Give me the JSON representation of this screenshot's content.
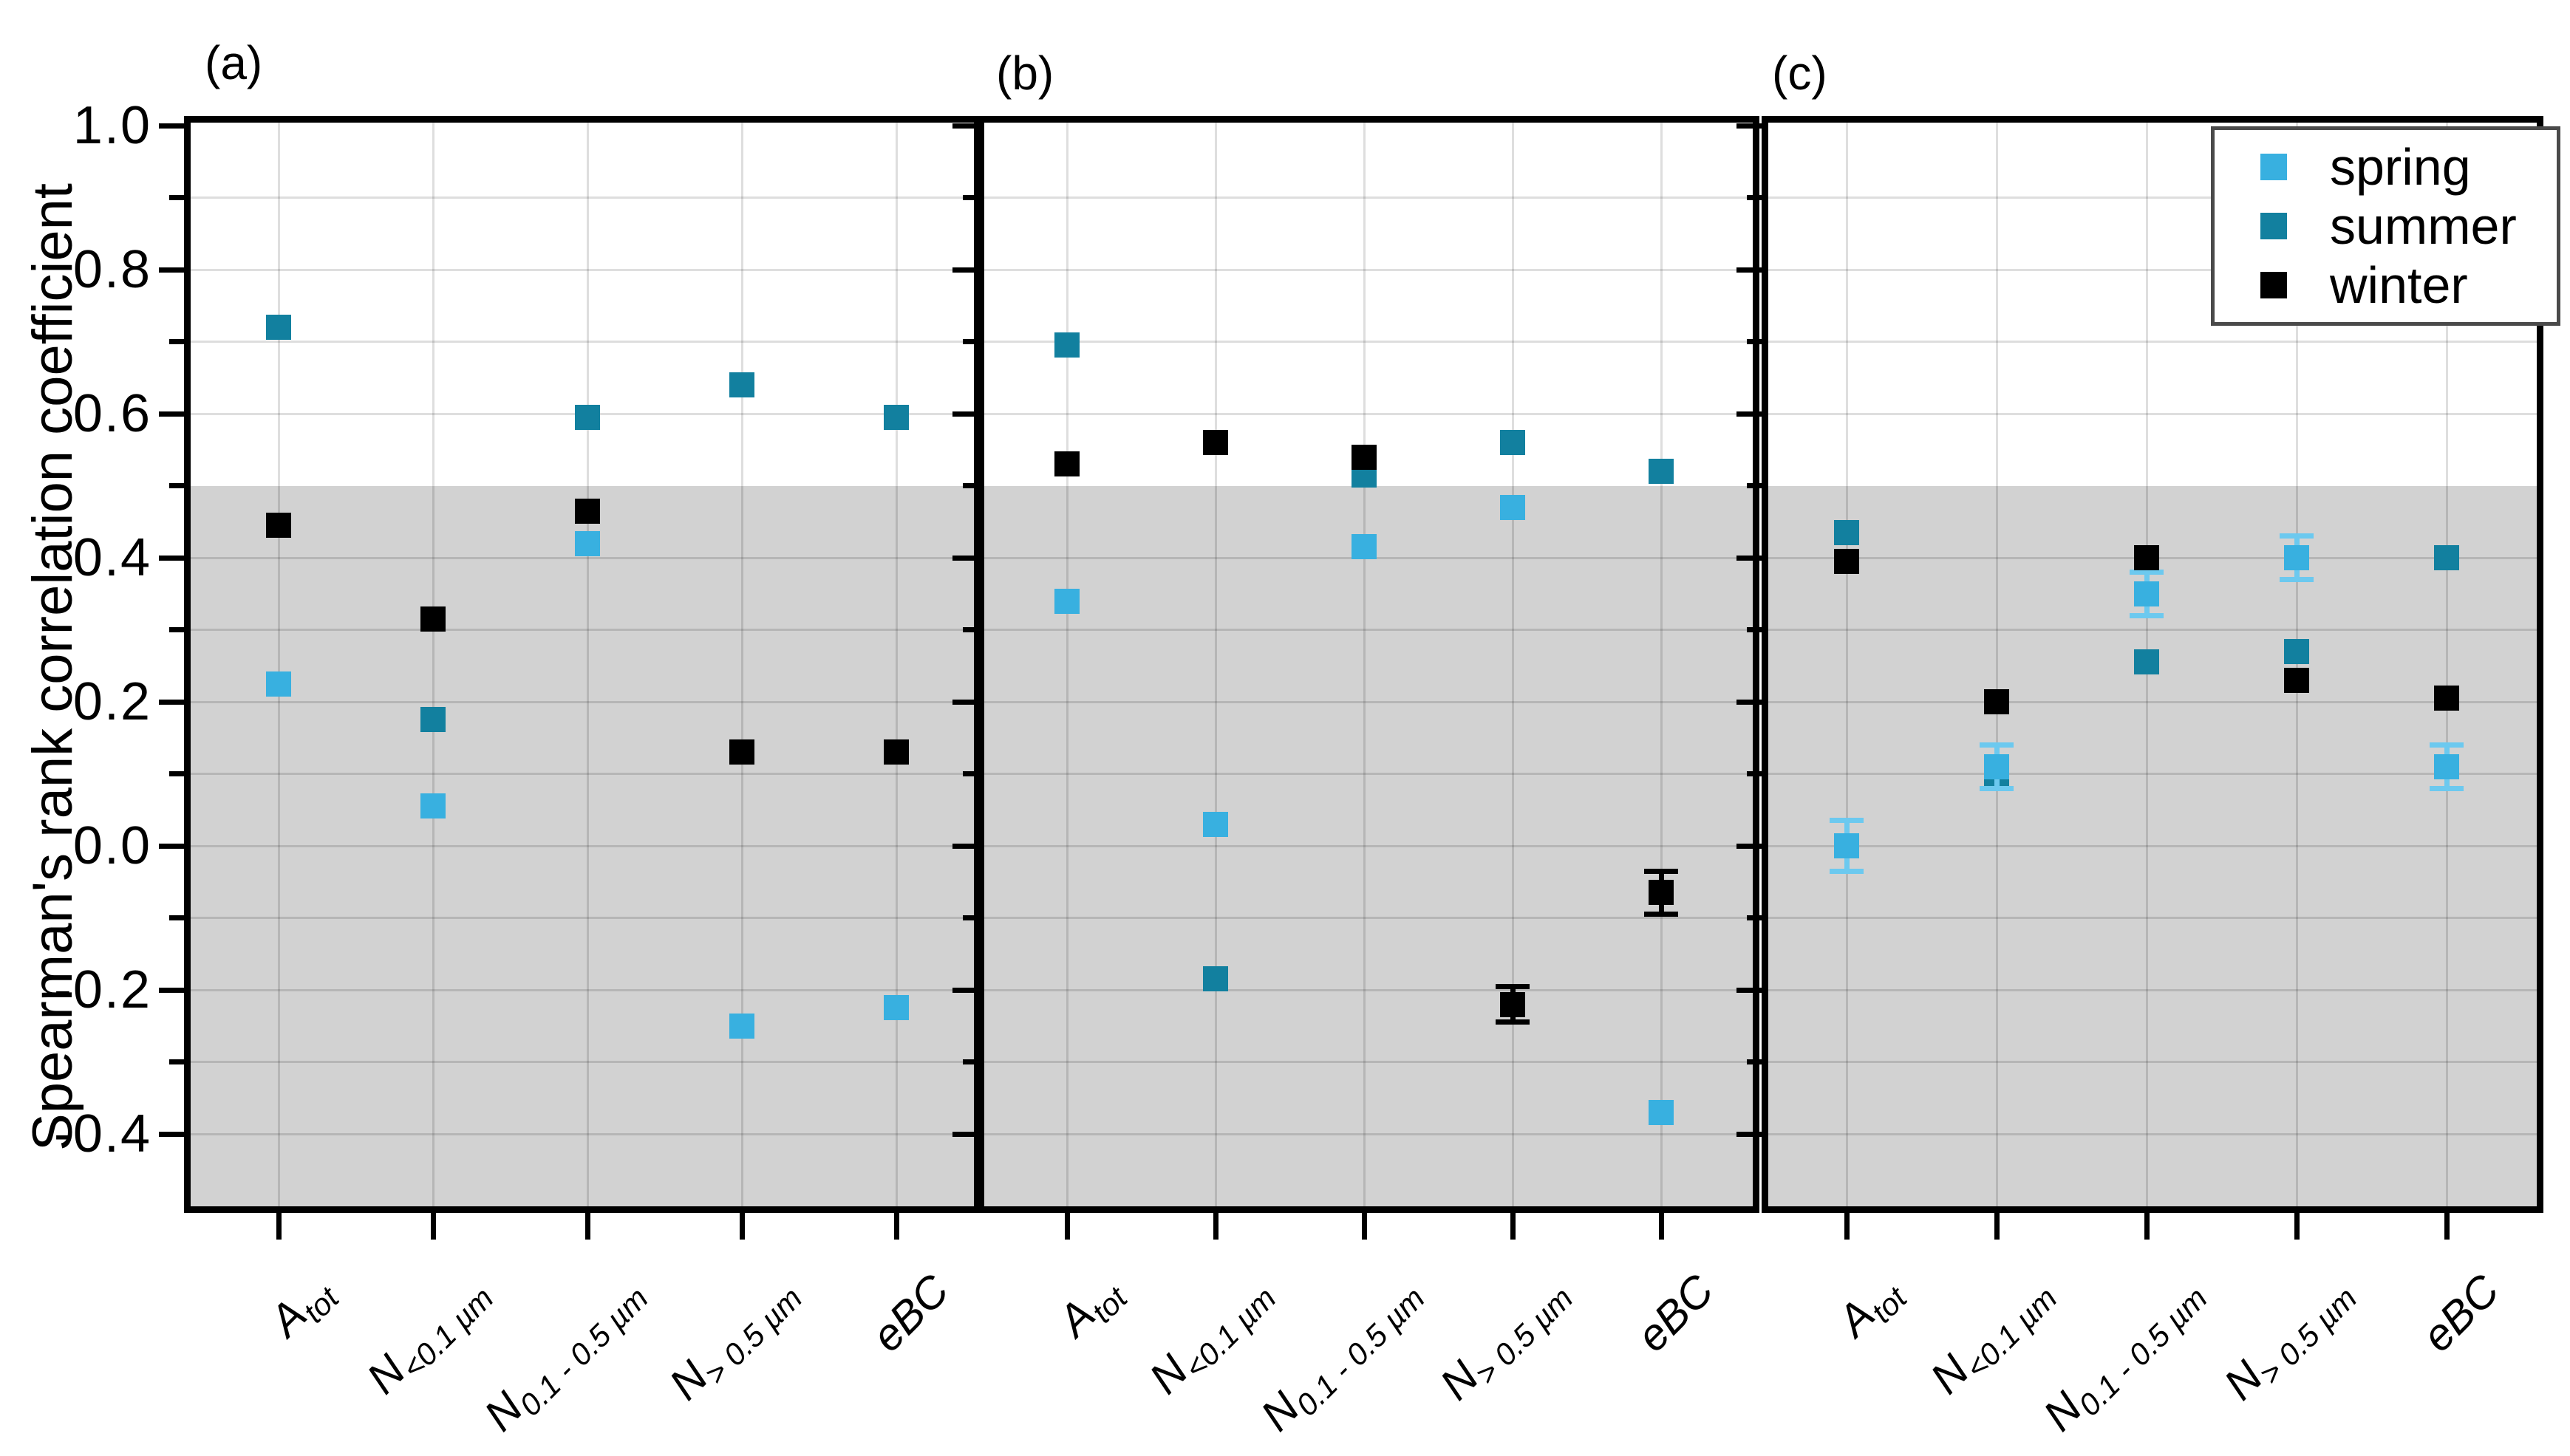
{
  "figure": {
    "background": "#ffffff"
  },
  "y_axis": {
    "title": "Spearman's rank correlation coefficient",
    "tick_labels": [
      "1.0",
      "0.8",
      "0.6",
      "0.4",
      "0.2",
      "0.0",
      "-0.2",
      "-0.4"
    ]
  },
  "legend": {
    "position": "top-right",
    "items": [
      {
        "label": "spring",
        "color": "#38b0e0",
        "error_color": "#6cc9ef"
      },
      {
        "label": "summer",
        "color": "#12809f",
        "error_color": "#12809f"
      },
      {
        "label": "winter",
        "color": "#000000",
        "error_color": "#000000"
      }
    ]
  },
  "chart_data": {
    "type": "scatter",
    "title": "",
    "xlabel": "",
    "ylabel": "Spearman's rank correlation coefficient",
    "ylim": [
      -0.5,
      1.0
    ],
    "yticks_major": [
      1.0,
      0.8,
      0.6,
      0.4,
      0.2,
      0.0,
      -0.2,
      -0.4
    ],
    "yticks_minor": [
      0.9,
      0.7,
      0.5,
      0.3,
      0.1,
      -0.1,
      -0.3
    ],
    "gridline_values": [
      0.9,
      0.8,
      0.7,
      0.6,
      0.4,
      0.3,
      0.2,
      0.1,
      0.0,
      -0.1,
      -0.2,
      -0.3,
      -0.4
    ],
    "grid": true,
    "shaded_band": {
      "from": -0.5,
      "to": 0.5,
      "color": "#d2d2d2"
    },
    "categories": [
      {
        "label": "A_tot",
        "main": "A",
        "sub": "tot"
      },
      {
        "label": "N_<0.1 um",
        "main": "N",
        "sub": "<0.1 µm"
      },
      {
        "label": "N_0.1-0.5 um",
        "main": "N",
        "sub": "0.1 - 0.5 µm"
      },
      {
        "label": "N_>0.5 um",
        "main": "N",
        "sub": "> 0.5 µm"
      },
      {
        "label": "eBC",
        "main": "eBC",
        "sub": ""
      }
    ],
    "series_names": [
      "spring",
      "summer",
      "winter"
    ],
    "panels": [
      {
        "label": "(a)",
        "series": {
          "spring": {
            "values": [
              0.225,
              0.055,
              0.42,
              -0.25,
              -0.225
            ],
            "errors": [
              null,
              null,
              null,
              null,
              null
            ]
          },
          "summer": {
            "values": [
              0.72,
              0.175,
              0.595,
              0.64,
              0.595
            ],
            "errors": [
              null,
              null,
              null,
              null,
              null
            ]
          },
          "winter": {
            "values": [
              0.445,
              0.315,
              0.465,
              0.13,
              0.13
            ],
            "errors": [
              null,
              null,
              null,
              null,
              null
            ]
          }
        }
      },
      {
        "label": "(b)",
        "series": {
          "spring": {
            "values": [
              0.34,
              0.03,
              0.415,
              0.47,
              -0.37
            ],
            "errors": [
              null,
              null,
              null,
              null,
              null
            ]
          },
          "summer": {
            "values": [
              0.695,
              -0.185,
              0.515,
              0.56,
              0.52
            ],
            "errors": [
              null,
              null,
              null,
              null,
              null
            ]
          },
          "winter": {
            "values": [
              0.53,
              0.56,
              0.54,
              -0.22,
              -0.065
            ],
            "errors": [
              null,
              null,
              null,
              0.025,
              0.03
            ]
          }
        }
      },
      {
        "label": "(c)",
        "series": {
          "spring": {
            "values": [
              0.0,
              0.11,
              0.35,
              0.4,
              0.11
            ],
            "errors": [
              0.035,
              0.03,
              0.03,
              0.03,
              0.03
            ]
          },
          "summer": {
            "values": [
              0.435,
              0.095,
              0.255,
              0.27,
              0.4
            ],
            "errors": [
              null,
              null,
              null,
              null,
              null
            ]
          },
          "winter": {
            "values": [
              0.395,
              0.2,
              0.4,
              0.23,
              0.205
            ],
            "errors": [
              null,
              null,
              null,
              null,
              null
            ]
          }
        }
      }
    ]
  }
}
